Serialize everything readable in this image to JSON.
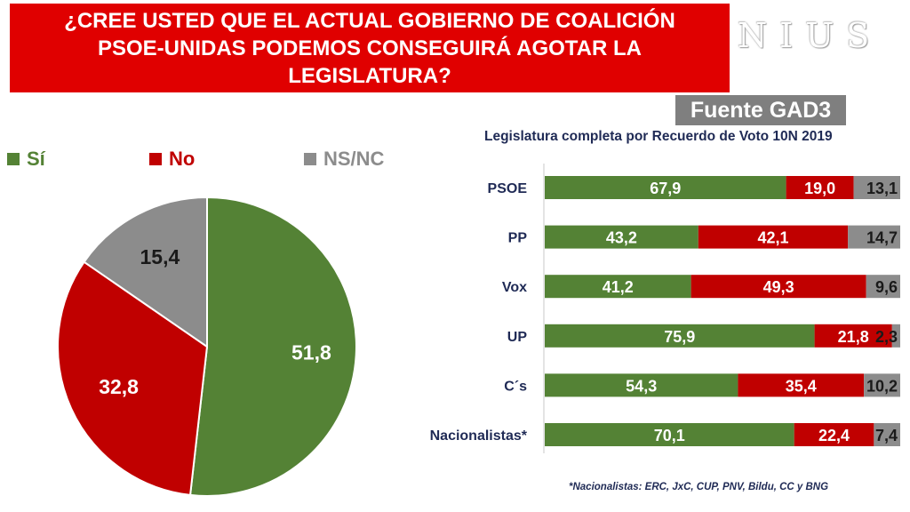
{
  "title": "¿CREE USTED QUE EL ACTUAL GOBIERNO DE COALICIÓN PSOE-UNIDAS PODEMOS CONSEGUIRÁ AGOTAR LA LEGISLATURA?",
  "logo": "NIUS",
  "source": "Fuente GAD3",
  "footnote": "*Nacionalistas: ERC, JxC, CUP, PNV, Bildu, CC y BNG",
  "colors": {
    "si": "#548235",
    "no": "#c00000",
    "ns": "#8c8c8c",
    "title_bg": "#e00000",
    "navy": "#1f2a55"
  },
  "chart_data": [
    {
      "type": "pie",
      "legend": [
        "Sí",
        "No",
        "NS/NC"
      ],
      "legend_position": "top",
      "slices": [
        {
          "label": "Sí",
          "value": 51.8,
          "value_label": "51,8"
        },
        {
          "label": "No",
          "value": 32.8,
          "value_label": "32,8"
        },
        {
          "label": "NS/NC",
          "value": 15.4,
          "value_label": "15,4"
        }
      ]
    },
    {
      "type": "bar",
      "orientation": "horizontal",
      "stacked": true,
      "title": "Legislatura completa por Recuerdo de Voto 10N 2019",
      "categories": [
        "PSOE",
        "PP",
        "Vox",
        "UP",
        "C´s",
        "Nacionalistas*"
      ],
      "series": [
        {
          "name": "Sí",
          "values": [
            67.9,
            43.2,
            41.2,
            75.9,
            54.3,
            70.1
          ],
          "labels": [
            "67,9",
            "43,2",
            "41,2",
            "75,9",
            "54,3",
            "70,1"
          ]
        },
        {
          "name": "No",
          "values": [
            19.0,
            42.1,
            49.3,
            21.8,
            35.4,
            22.4
          ],
          "labels": [
            "19,0",
            "42,1",
            "49,3",
            "21,8",
            "35,4",
            "22,4"
          ]
        },
        {
          "name": "NS/NC",
          "values": [
            13.1,
            14.7,
            9.6,
            2.3,
            10.2,
            7.4
          ],
          "labels": [
            "13,1",
            "14,7",
            "9,6",
            "2,3",
            "10,2",
            "7,4"
          ]
        }
      ]
    }
  ]
}
